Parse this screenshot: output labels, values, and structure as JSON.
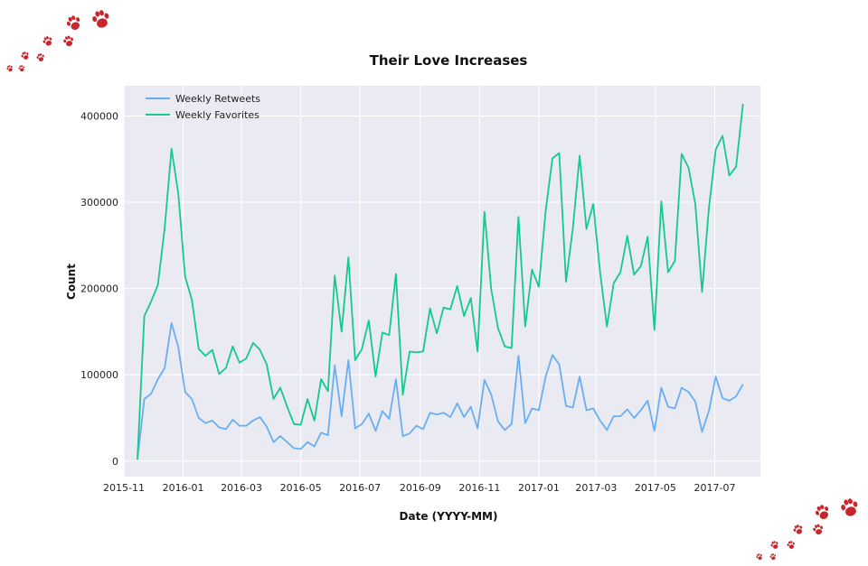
{
  "colors": {
    "plot_background": "#eaeaf2",
    "grid": "#ffffff",
    "retweets": "#6aaef2",
    "favorites": "#15c98d",
    "paw": "#c8262c"
  },
  "decorations": {
    "paw_icon": "paw-print-icon"
  },
  "chart_data": {
    "type": "line",
    "title": "Their Love Increases",
    "xlabel": "Date (YYYY-MM)",
    "ylabel": "Count",
    "xlim": [
      "2015-11-01",
      "2017-08-17"
    ],
    "ylim": [
      -18000,
      435000
    ],
    "grid": true,
    "legend_position": "top-left",
    "x_ticks": [
      "2015-11",
      "2016-01",
      "2016-03",
      "2016-05",
      "2016-07",
      "2016-09",
      "2016-11",
      "2017-01",
      "2017-03",
      "2017-05",
      "2017-07"
    ],
    "y_ticks": [
      0,
      100000,
      200000,
      300000,
      400000
    ],
    "x": [
      "2015-11-15",
      "2015-11-22",
      "2015-11-29",
      "2015-12-06",
      "2015-12-13",
      "2015-12-20",
      "2015-12-27",
      "2016-01-03",
      "2016-01-10",
      "2016-01-17",
      "2016-01-24",
      "2016-01-31",
      "2016-02-07",
      "2016-02-14",
      "2016-02-21",
      "2016-02-28",
      "2016-03-06",
      "2016-03-13",
      "2016-03-20",
      "2016-03-27",
      "2016-04-03",
      "2016-04-10",
      "2016-04-17",
      "2016-04-24",
      "2016-05-01",
      "2016-05-08",
      "2016-05-15",
      "2016-05-22",
      "2016-05-29",
      "2016-06-05",
      "2016-06-12",
      "2016-06-19",
      "2016-06-26",
      "2016-07-03",
      "2016-07-10",
      "2016-07-17",
      "2016-07-24",
      "2016-07-31",
      "2016-08-07",
      "2016-08-14",
      "2016-08-21",
      "2016-08-28",
      "2016-09-04",
      "2016-09-11",
      "2016-09-18",
      "2016-09-25",
      "2016-10-02",
      "2016-10-09",
      "2016-10-16",
      "2016-10-23",
      "2016-10-30",
      "2016-11-06",
      "2016-11-13",
      "2016-11-20",
      "2016-11-27",
      "2016-12-04",
      "2016-12-11",
      "2016-12-18",
      "2016-12-25",
      "2017-01-01",
      "2017-01-08",
      "2017-01-15",
      "2017-01-22",
      "2017-01-29",
      "2017-02-05",
      "2017-02-12",
      "2017-02-19",
      "2017-02-26",
      "2017-03-05",
      "2017-03-12",
      "2017-03-19",
      "2017-03-26",
      "2017-04-02",
      "2017-04-09",
      "2017-04-16",
      "2017-04-23",
      "2017-04-30",
      "2017-05-07",
      "2017-05-14",
      "2017-05-21",
      "2017-05-28",
      "2017-06-04",
      "2017-06-11",
      "2017-06-18",
      "2017-06-25",
      "2017-07-02",
      "2017-07-09",
      "2017-07-16",
      "2017-07-23",
      "2017-07-30"
    ],
    "series": [
      {
        "name": "Weekly Retweets",
        "color": "#6aaef2",
        "values": [
          2000,
          72000,
          78000,
          95000,
          108000,
          160000,
          132000,
          80000,
          72000,
          50000,
          44000,
          47000,
          39000,
          37000,
          48000,
          41000,
          41000,
          47000,
          51000,
          40000,
          22000,
          29000,
          22000,
          15000,
          14000,
          22000,
          17000,
          33000,
          30000,
          111000,
          52000,
          117000,
          38000,
          43000,
          55000,
          35000,
          58000,
          49000,
          95000,
          29000,
          32000,
          41000,
          37000,
          56000,
          54000,
          56000,
          51000,
          67000,
          51000,
          63000,
          38000,
          94000,
          77000,
          46000,
          36000,
          43000,
          122000,
          44000,
          61000,
          59000,
          98000,
          123000,
          112000,
          64000,
          62000,
          98000,
          59000,
          61000,
          47000,
          36000,
          52000,
          52000,
          60000,
          50000,
          59000,
          70000,
          35000,
          85000,
          63000,
          61000,
          85000,
          80000,
          69000,
          34000,
          58000,
          98000,
          73000,
          70000,
          75000,
          89000
        ]
      },
      {
        "name": "Weekly Favorites",
        "color": "#15c98d",
        "values": [
          2000,
          168000,
          185000,
          204000,
          270000,
          362000,
          310000,
          214000,
          187000,
          130000,
          122000,
          129000,
          101000,
          108000,
          133000,
          114000,
          119000,
          137000,
          129000,
          112000,
          72000,
          85000,
          63000,
          43000,
          42000,
          72000,
          47000,
          95000,
          81000,
          215000,
          150000,
          236000,
          117000,
          130000,
          163000,
          98000,
          149000,
          146000,
          217000,
          77000,
          127000,
          126000,
          127000,
          177000,
          148000,
          178000,
          176000,
          203000,
          168000,
          189000,
          127000,
          289000,
          199000,
          154000,
          133000,
          131000,
          283000,
          156000,
          222000,
          202000,
          290000,
          351000,
          357000,
          208000,
          270000,
          354000,
          269000,
          298000,
          219000,
          156000,
          206000,
          219000,
          261000,
          216000,
          226000,
          260000,
          152000,
          301000,
          219000,
          232000,
          356000,
          340000,
          298000,
          196000,
          293000,
          361000,
          377000,
          331000,
          341000,
          414000
        ]
      }
    ]
  }
}
